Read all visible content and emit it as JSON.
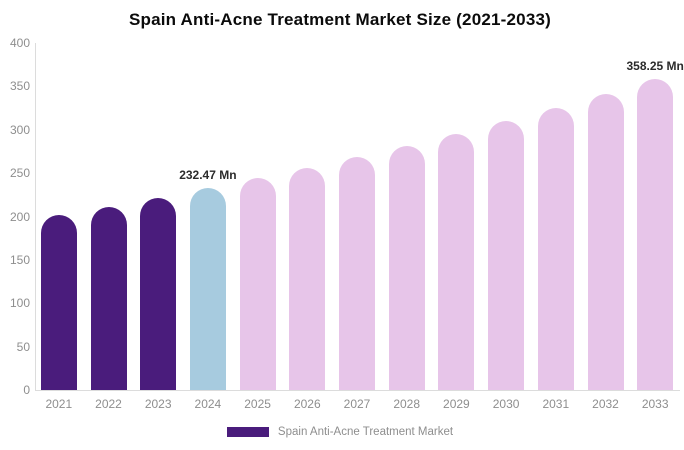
{
  "title": "Spain Anti-Acne Treatment Market Size (2021-2033)",
  "legend": {
    "label": "Spain Anti-Acne Treatment Market",
    "swatch_color": "#4A1C7C"
  },
  "colors": {
    "historical_bar": "#4A1C7C",
    "base_year_bar": "#A7CBDF",
    "forecast_bar": "#E7C5E9",
    "axis_text": "#8e8e8e",
    "axis_line": "#dcdcdc",
    "data_label_text": "#2b2b2b",
    "title_text": "#0b0b0b",
    "background": "#ffffff"
  },
  "chart_data": {
    "type": "bar",
    "title": "Spain Anti-Acne Treatment Market Size (2021-2033)",
    "categories": [
      "2021",
      "2022",
      "2023",
      "2024",
      "2025",
      "2026",
      "2027",
      "2028",
      "2029",
      "2030",
      "2031",
      "2032",
      "2033"
    ],
    "values": [
      201.3,
      211.2,
      221.6,
      232.47,
      243.9,
      255.9,
      268.5,
      281.7,
      295.5,
      310.1,
      325.3,
      341.3,
      358.25
    ],
    "unit": "Mn",
    "xlabel": "",
    "ylabel": "",
    "ylim": [
      0,
      400
    ],
    "yticks": [
      0,
      50,
      100,
      150,
      200,
      250,
      300,
      350,
      400
    ],
    "grid": false,
    "legend_position": "bottom",
    "bar_colors": [
      "#4A1C7C",
      "#4A1C7C",
      "#4A1C7C",
      "#A7CBDF",
      "#E7C5E9",
      "#E7C5E9",
      "#E7C5E9",
      "#E7C5E9",
      "#E7C5E9",
      "#E7C5E9",
      "#E7C5E9",
      "#E7C5E9",
      "#E7C5E9"
    ],
    "data_labels": [
      {
        "index": 3,
        "text": "232.47 Mn"
      },
      {
        "index": 12,
        "text": "358.25 Mn"
      }
    ]
  }
}
